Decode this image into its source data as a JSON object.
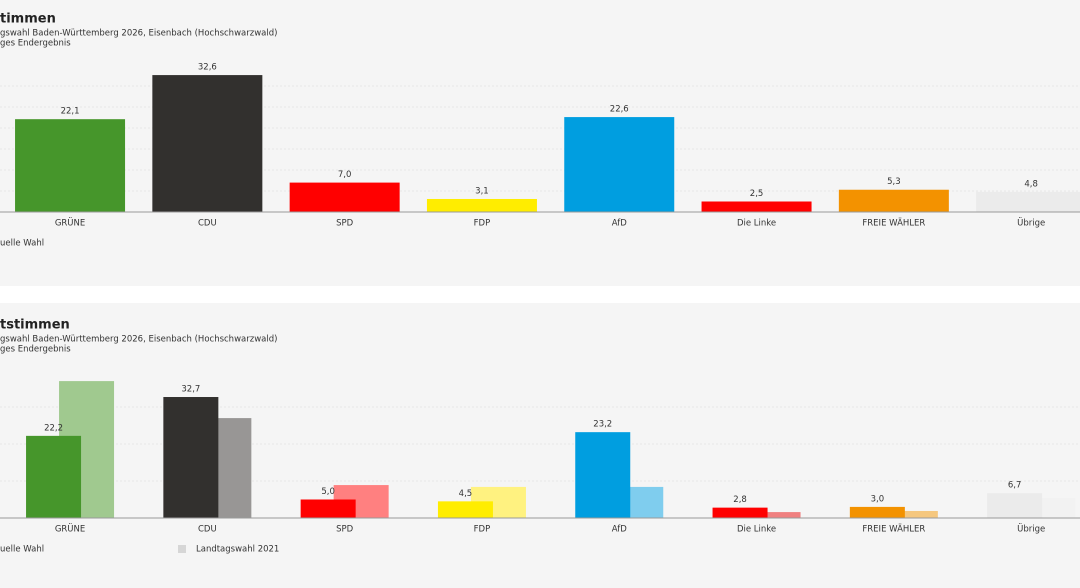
{
  "chart_data": [
    {
      "type": "bar",
      "title": "timmen",
      "subtitle": [
        "gswahl Baden-Württemberg 2026, Eisenbach (Hochschwarzwald)",
        "ges Endergebnis"
      ],
      "categories": [
        "GRÜNE",
        "CDU",
        "SPD",
        "FDP",
        "AfD",
        "Die Linke",
        "FREIE WÄHLER",
        "Übrige"
      ],
      "series": [
        {
          "name": "uelle Wahl",
          "colors": [
            "#46962b",
            "#32302e",
            "#ff0000",
            "#ffed00",
            "#009ee0",
            "#ff0000",
            "#f39200",
            "#ebebeb"
          ],
          "values": [
            22.1,
            32.6,
            7.0,
            3.1,
            22.6,
            2.5,
            5.3,
            4.8
          ],
          "value_labels": [
            "22,1",
            "32,6",
            "7,0",
            "3,1",
            "22,6",
            "2,5",
            "5,3",
            "4,8"
          ]
        }
      ],
      "ylim": [
        0,
        35
      ],
      "yticks": [
        5,
        10,
        15,
        20,
        25,
        30
      ],
      "grid": true
    },
    {
      "type": "bar",
      "title": "tstimmen",
      "subtitle": [
        "gswahl Baden-Württemberg 2026, Eisenbach (Hochschwarzwald)",
        "ges Endergebnis"
      ],
      "categories": [
        "GRÜNE",
        "CDU",
        "SPD",
        "FDP",
        "AfD",
        "Die Linke",
        "FREIE WÄHLER",
        "Übrige"
      ],
      "series": [
        {
          "name": "uelle Wahl",
          "colors": [
            "#46962b",
            "#32302e",
            "#ff0000",
            "#ffed00",
            "#009ee0",
            "#ff0000",
            "#f39200",
            "#ebebeb"
          ],
          "values": [
            22.2,
            32.7,
            5.0,
            4.5,
            23.2,
            2.8,
            3.0,
            6.7
          ],
          "value_labels": [
            "22,2",
            "32,7",
            "5,0",
            "4,5",
            "23,2",
            "2,8",
            "3,0",
            "6,7"
          ]
        },
        {
          "name": "Landtagswahl 2021",
          "color": "#d6d6d6",
          "colors": [
            "#a0c98f",
            "#989695",
            "#ff8080",
            "#fff280",
            "#7fcdee",
            "#f08080",
            "#f5c77e",
            "#f2f2f2"
          ],
          "values": [
            37.0,
            27.0,
            8.9,
            8.4,
            8.4,
            1.6,
            1.9,
            5.4
          ]
        }
      ],
      "ylim": [
        0,
        40
      ],
      "yticks": [
        10,
        20,
        30
      ],
      "grid": true
    }
  ]
}
